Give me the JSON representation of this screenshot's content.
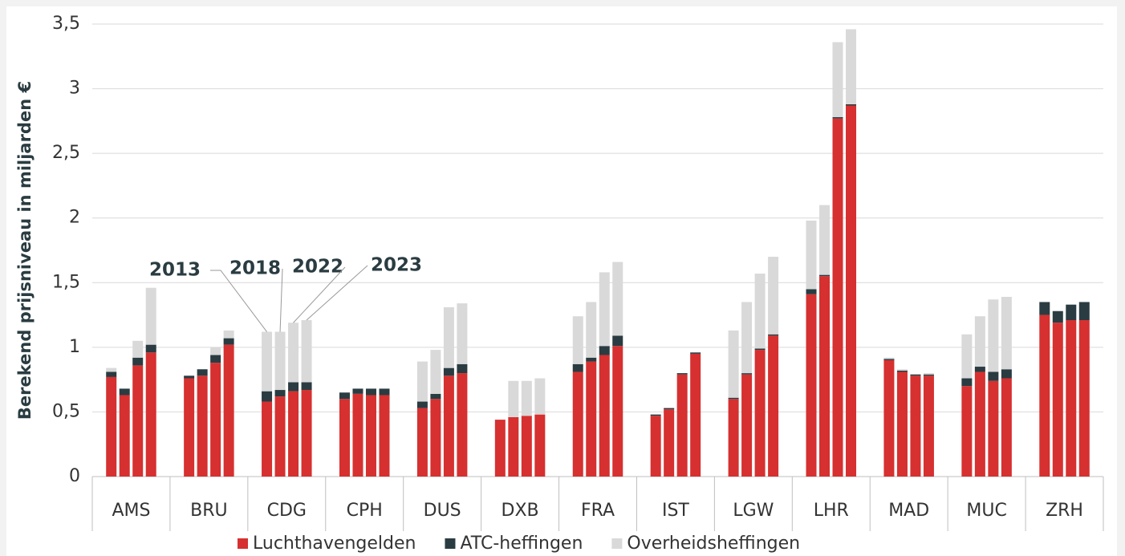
{
  "chart_data": {
    "type": "grouped-stacked-bar",
    "y_label": "Berekend prijsniveau in miljarden €",
    "categories": [
      "AMS",
      "BRU",
      "CDG",
      "CPH",
      "DUS",
      "DXB",
      "FRA",
      "IST",
      "LGW",
      "LHR",
      "MAD",
      "MUC",
      "ZRH"
    ],
    "annotations": [
      "2013",
      "2018",
      "2022",
      "2023"
    ],
    "ylim": [
      0,
      3.5
    ],
    "yticks": [
      0,
      {
        "value": 0.5,
        "label": "0,5"
      },
      1,
      {
        "value": 1.5,
        "label": "1,5"
      },
      2,
      {
        "value": 2.5,
        "label": "2,5"
      },
      3,
      {
        "value": 3.5,
        "label": "3,5"
      }
    ],
    "grid": true,
    "legend": "bottom",
    "series": [
      {
        "name": "Luchthavengelden",
        "color": "#d63030",
        "values": [
          [
            0.77,
            0.63,
            0.86,
            0.96
          ],
          [
            0.76,
            0.78,
            0.88,
            1.02
          ],
          [
            0.58,
            0.62,
            0.66,
            0.67
          ],
          [
            0.6,
            0.64,
            0.63,
            0.63
          ],
          [
            0.53,
            0.6,
            0.78,
            0.8
          ],
          [
            0.44,
            0.46,
            0.47,
            0.48
          ],
          [
            0.81,
            0.89,
            0.94,
            1.01
          ],
          [
            0.47,
            0.52,
            0.79,
            0.95
          ],
          [
            0.6,
            0.79,
            0.98,
            1.09
          ],
          [
            1.41,
            1.55,
            2.77,
            2.87
          ],
          [
            0.9,
            0.81,
            0.78,
            0.78
          ],
          [
            0.7,
            0.81,
            0.74,
            0.76
          ],
          [
            1.25,
            1.19,
            1.21,
            1.21
          ]
        ]
      },
      {
        "name": "ATC-heffingen",
        "color": "#2a3c41",
        "values": [
          [
            0.04,
            0.05,
            0.06,
            0.06
          ],
          [
            0.02,
            0.05,
            0.06,
            0.05
          ],
          [
            0.08,
            0.05,
            0.07,
            0.06
          ],
          [
            0.05,
            0.04,
            0.05,
            0.05
          ],
          [
            0.05,
            0.04,
            0.06,
            0.07
          ],
          [
            0,
            0,
            0,
            0
          ],
          [
            0.06,
            0.03,
            0.07,
            0.08
          ],
          [
            0.01,
            0.01,
            0.01,
            0.01
          ],
          [
            0.01,
            0.01,
            0.01,
            0.01
          ],
          [
            0.04,
            0.01,
            0.01,
            0.01
          ],
          [
            0.01,
            0.01,
            0.01,
            0.01
          ],
          [
            0.06,
            0.04,
            0.07,
            0.07
          ],
          [
            0.1,
            0.09,
            0.12,
            0.14
          ]
        ]
      },
      {
        "name": "Overheidsheffingen",
        "color": "#d9d9d9",
        "values": [
          [
            0.03,
            0,
            0.13,
            0.44
          ],
          [
            0,
            0,
            0.06,
            0.06
          ],
          [
            0.46,
            0.45,
            0.46,
            0.48
          ],
          [
            0,
            0,
            0,
            0
          ],
          [
            0.31,
            0.34,
            0.47,
            0.47
          ],
          [
            0,
            0.28,
            0.27,
            0.28
          ],
          [
            0.37,
            0.43,
            0.57,
            0.57
          ],
          [
            0,
            0,
            0,
            0
          ],
          [
            0.52,
            0.55,
            0.58,
            0.6
          ],
          [
            0.53,
            0.54,
            0.58,
            0.58
          ],
          [
            0.01,
            0.01,
            0,
            0.01
          ],
          [
            0.34,
            0.39,
            0.56,
            0.56
          ],
          [
            0,
            0,
            0,
            0
          ]
        ]
      }
    ]
  }
}
